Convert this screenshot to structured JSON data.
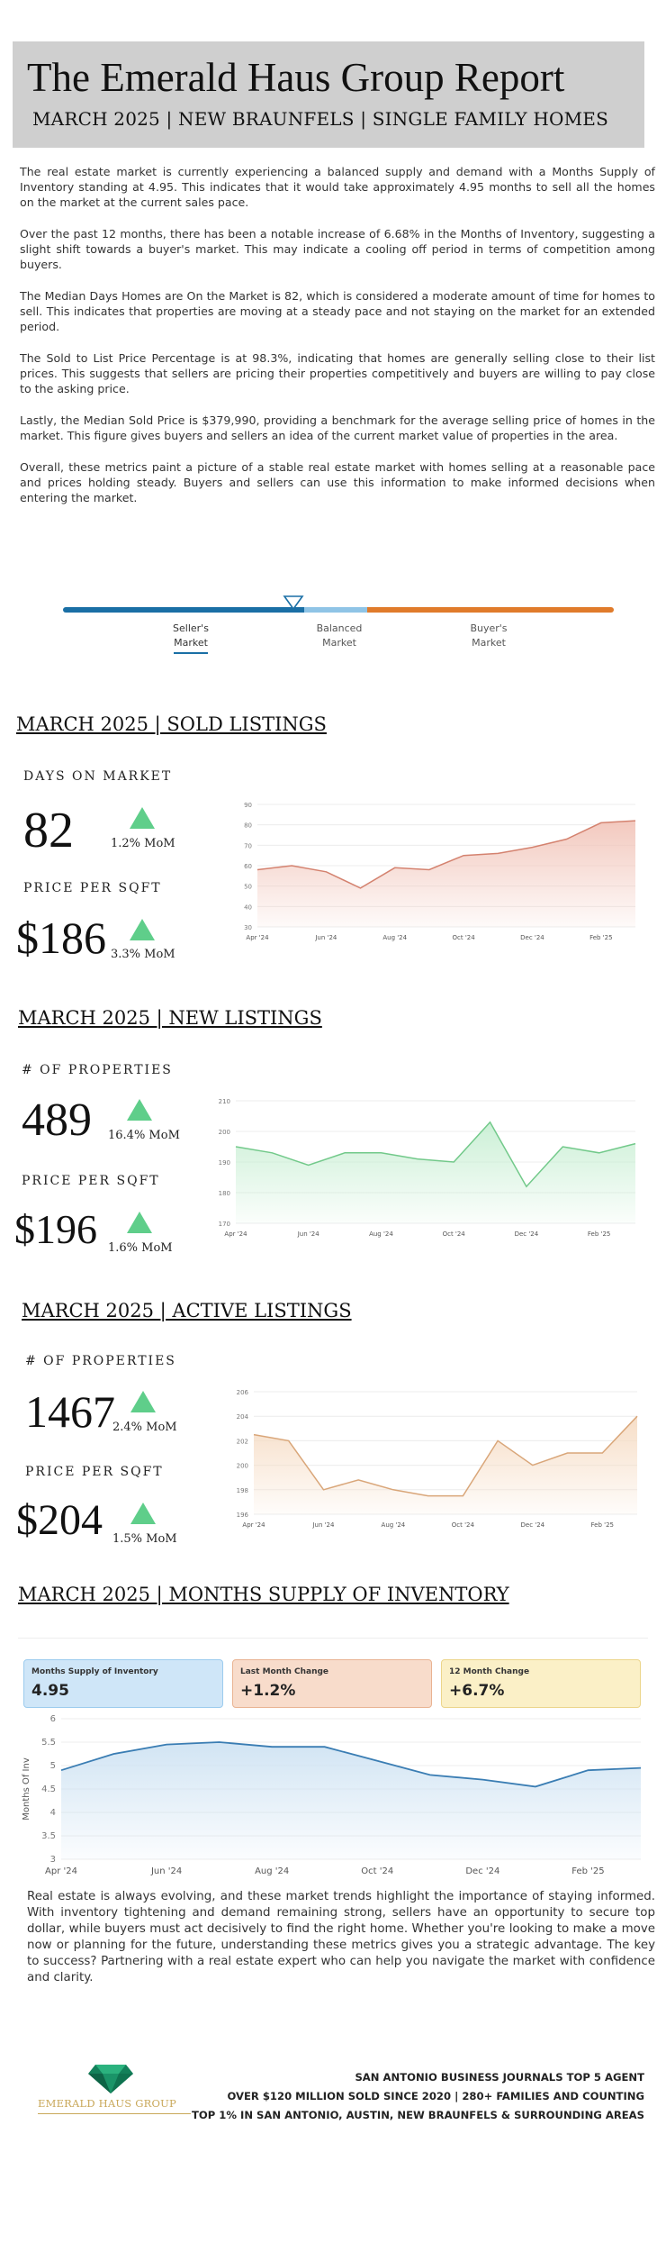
{
  "header": {
    "title": "The Emerald Haus Group Report",
    "subtitle": "MARCH 2025 | NEW BRAUNFELS | SINGLE FAMILY HOMES"
  },
  "paragraphs": [
    "The real estate market is currently experiencing a balanced supply and demand with a Months Supply of Inventory standing at 4.95. This indicates that it would take approximately 4.95 months to sell all the homes on the market at the current sales pace.",
    "Over the past 12 months, there has been a notable increase of 6.68% in the Months of Inventory, suggesting a slight shift towards a buyer's market. This may indicate a cooling off period in terms of competition among buyers.",
    "The Median Days Homes are On the Market is 82, which is considered a moderate amount of time for homes to sell. This indicates that properties are moving at a steady pace and not staying on the market for an extended period.",
    "The Sold to List Price Percentage is at 98.3%, indicating that homes are generally selling close to their list prices. This suggests that sellers are pricing their properties competitively and buyers are willing to pay close to the asking price.",
    "Lastly, the Median Sold Price is $379,990, providing a benchmark for the average selling price of homes in the market. This figure gives buyers and sellers an idea of the current market value of properties in the area.",
    "Overall, these metrics paint a picture of a stable real estate market with homes selling at a reasonable pace and prices holding steady. Buyers and sellers can use this information to make informed decisions when entering the market."
  ],
  "market_scale": {
    "labels": [
      {
        "line1": "Seller's",
        "line2": "Market"
      },
      {
        "line1": "Balanced",
        "line2": "Market"
      },
      {
        "line1": "Buyer's",
        "line2": "Market"
      }
    ],
    "colors": {
      "seller": "#1a6fa5",
      "balanced": "#8fc4e6",
      "buyer": "#e07b2b"
    }
  },
  "sold": {
    "title": "MARCH 2025 | SOLD LISTINGS",
    "m1_label": "DAYS ON MARKET",
    "m1_value": "82",
    "m1_change": "1.2% MoM",
    "m2_label": "PRICE PER SQFT",
    "m2_value": "$186",
    "m2_change": "3.3% MoM"
  },
  "new": {
    "title": "MARCH 2025 | NEW LISTINGS",
    "m1_label": "# OF PROPERTIES",
    "m1_value": "489",
    "m1_change": "16.4% MoM",
    "m2_label": "PRICE PER SQFT",
    "m2_value": "$196",
    "m2_change": "1.6% MoM"
  },
  "active": {
    "title": "MARCH 2025 | ACTIVE LISTINGS",
    "m1_label": "# OF PROPERTIES",
    "m1_value": "1467",
    "m1_change": "2.4% MoM",
    "m2_label": "PRICE PER SQFT",
    "m2_value": "$204",
    "m2_change": "1.5% MoM"
  },
  "mos": {
    "title": "MARCH 2025 | MONTHS SUPPLY OF INVENTORY",
    "cards": [
      {
        "label": "Months Supply of Inventory",
        "value": "4.95",
        "bg": "#cfe6f8",
        "border": "#9ccbee"
      },
      {
        "label": "Last Month Change",
        "value": "+1.2%",
        "bg": "#f8dccb",
        "border": "#e9b392"
      },
      {
        "label": "12 Month Change",
        "value": "+6.7%",
        "bg": "#fbf0c7",
        "border": "#ecd58b"
      }
    ]
  },
  "chart_data": [
    {
      "type": "area",
      "id": "sold-dom",
      "color": "#d4826f",
      "fill": "#f2c6bb",
      "ylim": [
        30,
        90
      ],
      "yticks": [
        30,
        40,
        50,
        60,
        70,
        80,
        90
      ],
      "x": [
        "Apr '24",
        "May '24",
        "Jun '24",
        "Jul '24",
        "Aug '24",
        "Sep '24",
        "Oct '24",
        "Nov '24",
        "Dec '24",
        "Jan '25",
        "Feb '25",
        "Mar '25"
      ],
      "xtick_labels": [
        "Apr '24",
        "Jun '24",
        "Aug '24",
        "Oct '24",
        "Dec '24",
        "Feb '25"
      ],
      "values": [
        58,
        60,
        57,
        49,
        59,
        58,
        65,
        66,
        69,
        73,
        81,
        82
      ]
    },
    {
      "type": "area",
      "id": "new-ppsf",
      "color": "#72c98a",
      "fill": "#c9efd4",
      "ylim": [
        170,
        210
      ],
      "yticks": [
        170,
        180,
        190,
        200,
        210
      ],
      "x": [
        "Apr '24",
        "May '24",
        "Jun '24",
        "Jul '24",
        "Aug '24",
        "Sep '24",
        "Oct '24",
        "Nov '24",
        "Dec '24",
        "Jan '25",
        "Feb '25",
        "Mar '25"
      ],
      "xtick_labels": [
        "Apr '24",
        "Jun '24",
        "Aug '24",
        "Oct '24",
        "Dec '24",
        "Feb '25"
      ],
      "values": [
        195,
        193,
        189,
        193,
        193,
        191,
        190,
        203,
        182,
        195,
        193,
        196
      ]
    },
    {
      "type": "area",
      "id": "active-ppsf",
      "color": "#d9a679",
      "fill": "#f6dcc4",
      "ylim": [
        196,
        206
      ],
      "yticks": [
        196,
        198,
        200,
        202,
        204,
        206
      ],
      "x": [
        "Apr '24",
        "May '24",
        "Jun '24",
        "Jul '24",
        "Aug '24",
        "Sep '24",
        "Oct '24",
        "Nov '24",
        "Dec '24",
        "Jan '25",
        "Feb '25",
        "Mar '25"
      ],
      "xtick_labels": [
        "Apr '24",
        "Jun '24",
        "Aug '24",
        "Oct '24",
        "Dec '24",
        "Feb '25"
      ],
      "values": [
        202.5,
        202,
        198,
        198.8,
        198,
        197.5,
        197.5,
        202,
        200,
        201,
        201,
        204
      ]
    },
    {
      "type": "area",
      "id": "mos-chart",
      "color": "#3a7db3",
      "fill": "#cfe3f3",
      "ylabel": "Months Of Inv",
      "ylim": [
        3,
        6
      ],
      "yticks": [
        3,
        3.5,
        4,
        4.5,
        5,
        5.5,
        6
      ],
      "x": [
        "Apr '24",
        "May '24",
        "Jun '24",
        "Jul '24",
        "Aug '24",
        "Sep '24",
        "Oct '24",
        "Nov '24",
        "Dec '24",
        "Jan '25",
        "Feb '25",
        "Mar '25"
      ],
      "xtick_labels": [
        "Apr '24",
        "Jun '24",
        "Aug '24",
        "Oct '24",
        "Dec '24",
        "Feb '25"
      ],
      "values": [
        4.9,
        5.25,
        5.45,
        5.5,
        5.4,
        5.4,
        5.1,
        4.8,
        4.7,
        4.55,
        4.9,
        4.95
      ]
    }
  ],
  "closing": "Real estate is always evolving, and these market trends highlight the importance of staying informed. With inventory tightening and demand remaining strong, sellers have an opportunity to secure top dollar, while buyers must act decisively to find the right home. Whether you're looking to make a move now or planning for the future, understanding these metrics gives you a strategic advantage. The key to success? Partnering with a real estate expert who can help you navigate the market with confidence and clarity.",
  "footer": {
    "logo_text": "EMERALD HAUS GROUP",
    "lines": [
      "SAN ANTONIO BUSINESS JOURNALS TOP 5 AGENT",
      "OVER $120 MILLION SOLD SINCE 2020 | 280+ FAMILIES AND COUNTING",
      "TOP 1% IN SAN ANTONIO, AUSTIN, NEW BRAUNFELS & SURROUNDING AREAS"
    ]
  }
}
